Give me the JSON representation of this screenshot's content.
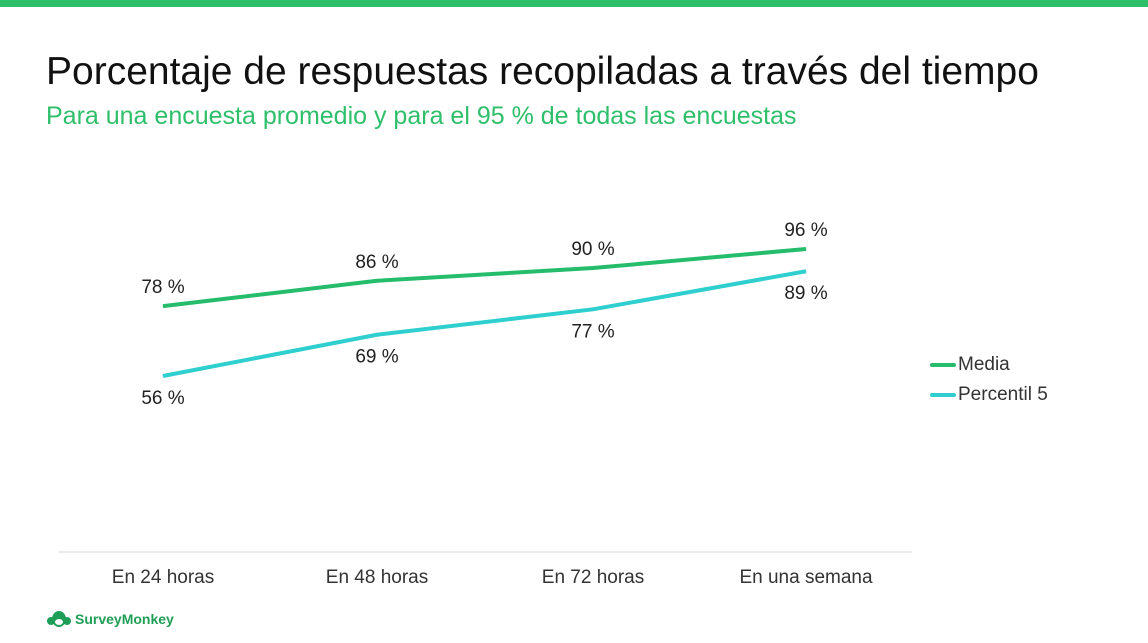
{
  "slide": {
    "title": "Porcentaje de respuestas recopiladas a través del tiempo",
    "subtitle": "Para una encuesta promedio y para el 95 % de todas las encuestas",
    "brand_logo_text": "SurveyMonkey"
  },
  "colors": {
    "accent_bar": "#2dbf6a",
    "subtitle": "#2dbf6a",
    "media": "#25bd6b",
    "percentil": "#2fcfcf",
    "axis": "#d9d9d9"
  },
  "chart_data": {
    "type": "line",
    "title": "",
    "xlabel": "",
    "ylabel": "",
    "categories": [
      "En 24 horas",
      "En 48 horas",
      "En 72 horas",
      "En una semana"
    ],
    "series": [
      {
        "name": "Media",
        "values": [
          78,
          86,
          90,
          96
        ],
        "labels": [
          "78 %",
          "86 %",
          "90 %",
          "96 %"
        ],
        "label_position": "above"
      },
      {
        "name": "Percentil 5",
        "values": [
          56,
          69,
          77,
          89
        ],
        "labels": [
          "56 %",
          "69 %",
          "77 %",
          "89 %"
        ],
        "label_position": "below"
      }
    ],
    "ylim": [
      0,
      100
    ],
    "grid": false,
    "y_axis_visible": false,
    "legend_position": "right"
  }
}
